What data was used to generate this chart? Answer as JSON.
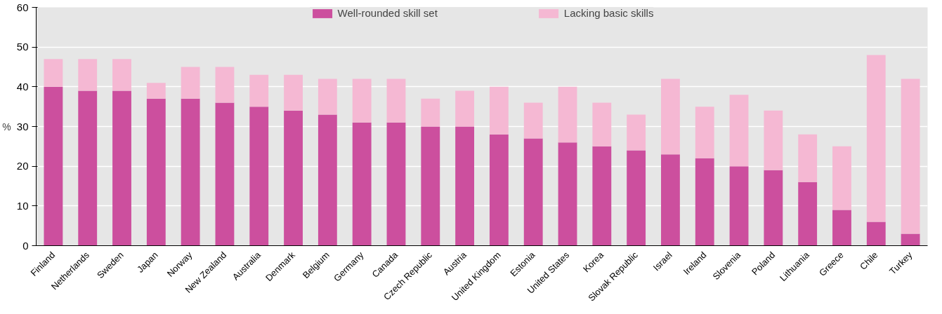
{
  "chart_data": {
    "type": "bar",
    "stacked": true,
    "ylabel": "%",
    "categories": [
      "Finland",
      "Netherlands",
      "Sweden",
      "Japan",
      "Norway",
      "New Zealand",
      "Australia",
      "Denmark",
      "Belgium",
      "Germany",
      "Canada",
      "Czech Republic",
      "Austria",
      "United Kingdom",
      "Estonia",
      "United States",
      "Korea",
      "Slovak Republic",
      "Israel",
      "Ireland",
      "Slovenia",
      "Poland",
      "Lithuania",
      "Greece",
      "Chile",
      "Turkey"
    ],
    "series": [
      {
        "name": "Well-rounded skill set",
        "color": "#cc4f9e",
        "values": [
          40,
          39,
          39,
          37,
          37,
          36,
          35,
          34,
          33,
          31,
          31,
          30,
          30,
          28,
          27,
          26,
          25,
          24,
          23,
          22,
          20,
          19,
          16,
          9,
          6,
          3
        ]
      },
      {
        "name": "Lacking basic skills",
        "color": "#f5b8d3",
        "values": [
          7,
          8,
          8,
          4,
          8,
          9,
          8,
          9,
          9,
          11,
          11,
          7,
          9,
          12,
          9,
          14,
          11,
          9,
          19,
          13,
          18,
          15,
          12,
          16,
          42,
          39
        ]
      }
    ],
    "ylim": [
      0,
      60
    ],
    "yticks": [
      0,
      10,
      20,
      30,
      40,
      50,
      60
    ],
    "grid": "y",
    "legend": "top"
  }
}
